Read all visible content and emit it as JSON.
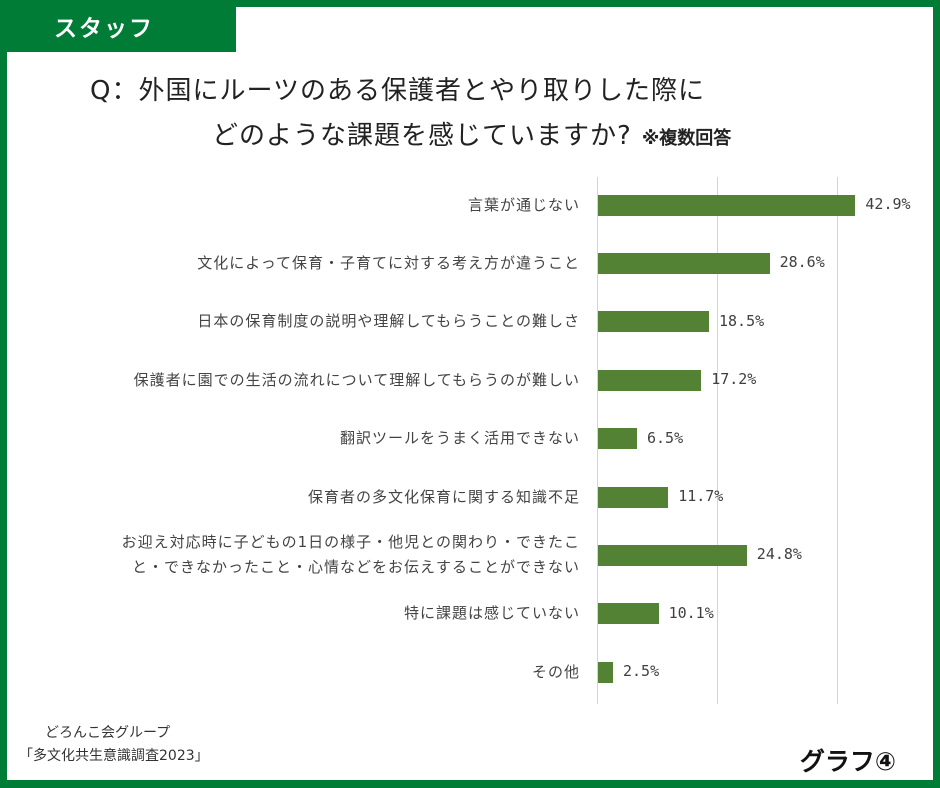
{
  "header": {
    "tag": "スタッフ",
    "question_line1": "Q：外国にルーツのある保護者とやり取りした際に",
    "question_line2": "どのような課題を感じていますか?",
    "note": "※複数回答"
  },
  "footer": {
    "source_line1": "どろんこ会グループ",
    "source_line2": "「多文化共生意識調査2023」",
    "graph_label": "グラフ④"
  },
  "colors": {
    "frame": "#007c36",
    "bar": "#548235",
    "grid": "#d4d4d4"
  },
  "chart_data": {
    "type": "bar",
    "orientation": "horizontal",
    "title": "Q：外国にルーツのある保護者とやり取りした際に どのような課題を感じていますか? ※複数回答",
    "categories": [
      "言葉が通じない",
      "文化によって保育・子育てに対する考え方が違うこと",
      "日本の保育制度の説明や理解してもらうことの難しさ",
      "保護者に園での生活の流れについて理解してもらうのが難しい",
      "翻訳ツールをうまく活用できない",
      "保育者の多文化保育に関する知識不足",
      "お迎え対応時に子どもの1日の様子・他児との関わり・できたこと・できなかったこと・心情などをお伝えすることができない",
      "特に課題は感じていない",
      "その他"
    ],
    "values": [
      42.9,
      28.6,
      18.5,
      17.2,
      6.5,
      11.7,
      24.8,
      10.1,
      2.5
    ],
    "value_labels": [
      "42.9%",
      "28.6%",
      "18.5%",
      "17.2%",
      "6.5%",
      "11.7%",
      "24.8%",
      "10.1%",
      "2.5%"
    ],
    "xlabel": "",
    "ylabel": "",
    "xlim": [
      0,
      40
    ],
    "gridlines_x": [
      0,
      20,
      40
    ],
    "grid": true,
    "legend": "none"
  },
  "labels_display": [
    [
      "言葉が通じない"
    ],
    [
      "文化によって保育・子育てに対する考え方が違うこと"
    ],
    [
      "日本の保育制度の説明や理解してもらうことの難しさ"
    ],
    [
      "保護者に園での生活の流れについて理解してもらうのが難しい"
    ],
    [
      "翻訳ツールをうまく活用できない"
    ],
    [
      "保育者の多文化保育に関する知識不足"
    ],
    [
      "お迎え対応時に子どもの1日の様子・他児との関わり・できたこ",
      "と・できなかったこと・心情などをお伝えすることができない"
    ],
    [
      "特に課題は感じていない"
    ],
    [
      "その他"
    ]
  ]
}
